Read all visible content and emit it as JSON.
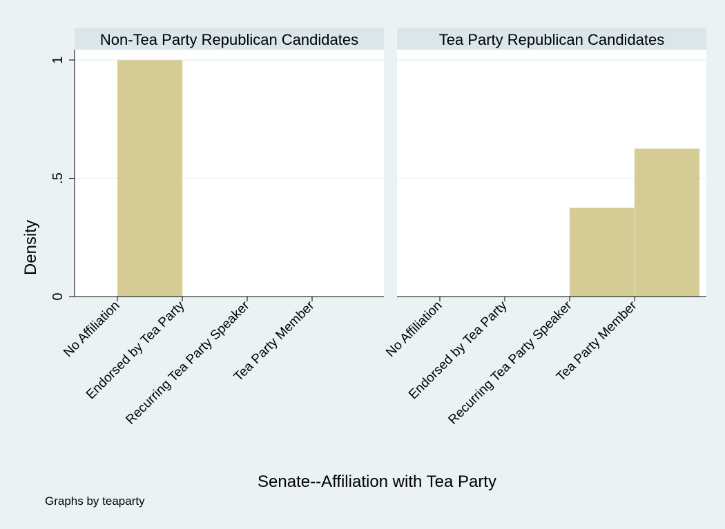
{
  "chart_data": {
    "type": "bar",
    "subtype": "histogram-by-group",
    "colors": {
      "background": "#EAF2F3",
      "panel": "#FFFFFF",
      "strip": "#D9E6EB",
      "bar": "#D5CC95",
      "bar_edge": "#E8E2BE",
      "grid": "#EAF2F3"
    },
    "categories": [
      "No Affiliation",
      "Endorsed by Tea Party",
      "Recurring Tea Party Speaker",
      "Tea Party Member"
    ],
    "ylabel": "Density",
    "xlabel": "Senate--Affiliation with Tea Party",
    "ylim": [
      0,
      1
    ],
    "yticks": [
      {
        "value": 0,
        "label": "0"
      },
      {
        "value": 0.5,
        "label": ".5"
      },
      {
        "value": 1,
        "label": "1"
      }
    ],
    "grid": true,
    "note": "Graphs by teaparty",
    "panels": [
      {
        "title": "Non-Tea Party Republican Candidates",
        "values": [
          1,
          0,
          0,
          0
        ]
      },
      {
        "title": "Tea Party Republican Candidates",
        "values": [
          0,
          0,
          0.375,
          0.625
        ]
      }
    ]
  }
}
